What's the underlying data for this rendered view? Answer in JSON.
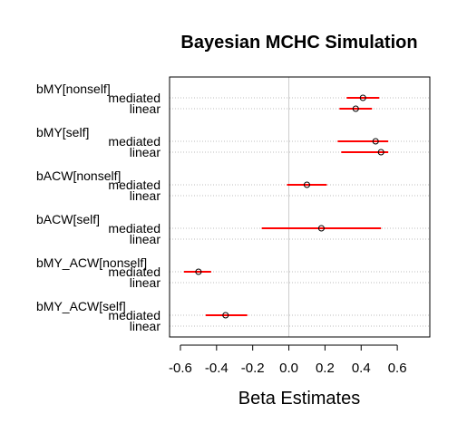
{
  "chart_data": {
    "type": "dot-interval",
    "title": "Bayesian MCHC Simulation",
    "xlabel": "Beta Estimates",
    "xlim": [
      -0.66,
      0.78
    ],
    "xticks": [
      -0.6,
      -0.4,
      -0.2,
      0.0,
      0.2,
      0.4,
      0.6
    ],
    "xtick_labels": [
      "-0.6",
      "-0.4",
      "-0.2",
      "0.0",
      "0.2",
      "0.4",
      "0.6"
    ],
    "grid": "dotted horizontal lines at each row",
    "reference_line": 0,
    "colors": {
      "interval": "#ff0000",
      "point": "#000000",
      "grid": "#bebebe",
      "refline": "#cccccc"
    },
    "groups": [
      {
        "label": "bMY[nonself]",
        "rows": [
          {
            "label": "mediated",
            "est": 0.41,
            "lo": 0.32,
            "hi": 0.5
          },
          {
            "label": "linear",
            "est": 0.37,
            "lo": 0.28,
            "hi": 0.46
          }
        ]
      },
      {
        "label": "bMY[self]",
        "rows": [
          {
            "label": "mediated",
            "est": 0.48,
            "lo": 0.27,
            "hi": 0.55
          },
          {
            "label": "linear",
            "est": 0.51,
            "lo": 0.29,
            "hi": 0.55
          }
        ]
      },
      {
        "label": "bACW[nonself]",
        "rows": [
          {
            "label": "mediated",
            "est": 0.1,
            "lo": -0.01,
            "hi": 0.21
          },
          {
            "label": "linear",
            "est": null,
            "lo": null,
            "hi": null
          }
        ]
      },
      {
        "label": "bACW[self]",
        "rows": [
          {
            "label": "mediated",
            "est": 0.18,
            "lo": -0.15,
            "hi": 0.51
          },
          {
            "label": "linear",
            "est": null,
            "lo": null,
            "hi": null
          }
        ]
      },
      {
        "label": "bMY_ACW[nonself]",
        "rows": [
          {
            "label": "mediated",
            "est": -0.5,
            "lo": -0.58,
            "hi": -0.43
          },
          {
            "label": "linear",
            "est": null,
            "lo": null,
            "hi": null
          }
        ]
      },
      {
        "label": "bMY_ACW[self]",
        "rows": [
          {
            "label": "mediated",
            "est": -0.35,
            "lo": -0.46,
            "hi": -0.23
          },
          {
            "label": "linear",
            "est": null,
            "lo": null,
            "hi": null
          }
        ]
      }
    ]
  }
}
